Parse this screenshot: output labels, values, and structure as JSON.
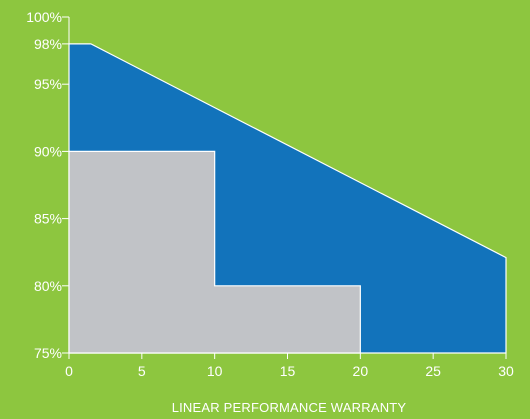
{
  "colors": {
    "background": "#8dc63f",
    "linear_warranty_fill": "#1273bb",
    "step_warranty_fill": "#c1c3c7",
    "axis": "#ffffff",
    "text": "#ffffff"
  },
  "chart_data": {
    "type": "area",
    "title": "",
    "xlabel": "LINEAR PERFORMANCE WARRANTY",
    "ylabel": "",
    "xlim": [
      0,
      30
    ],
    "ylim": [
      75,
      100
    ],
    "grid": false,
    "legend": "none",
    "x_ticks": [
      0,
      5,
      10,
      15,
      20,
      25,
      30
    ],
    "x_tick_labels": [
      "0",
      "5",
      "10",
      "15",
      "20",
      "25",
      "30"
    ],
    "y_ticks": [
      75,
      80,
      85,
      90,
      95,
      98,
      100
    ],
    "y_tick_labels": [
      "75%",
      "80%",
      "85%",
      "90%",
      "95%",
      "98%",
      "100%"
    ],
    "series": [
      {
        "style": "linear",
        "color": "#1273bb",
        "x": [
          0,
          1.5,
          30
        ],
        "y": [
          98,
          98,
          82.1
        ]
      },
      {
        "style": "step",
        "color": "#c1c3c7",
        "x": [
          0,
          10,
          10,
          20,
          20
        ],
        "y": [
          90,
          90,
          80,
          80,
          75
        ]
      }
    ]
  }
}
